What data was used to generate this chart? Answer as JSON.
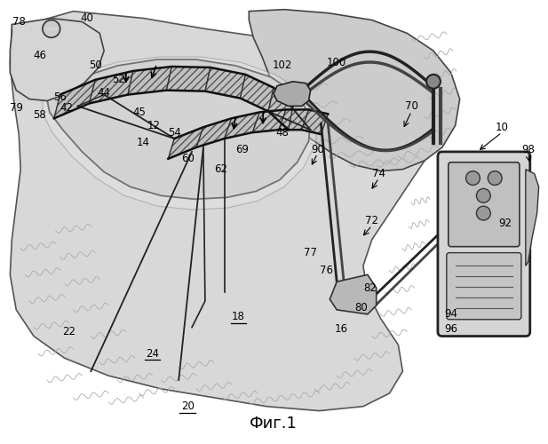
{
  "title": "Фиг.1",
  "title_font": "DejaVu Sans",
  "title_size": 13,
  "background_color": "#ffffff",
  "line_color": "#000000",
  "underlined_labels": [
    "18",
    "20",
    "24"
  ]
}
